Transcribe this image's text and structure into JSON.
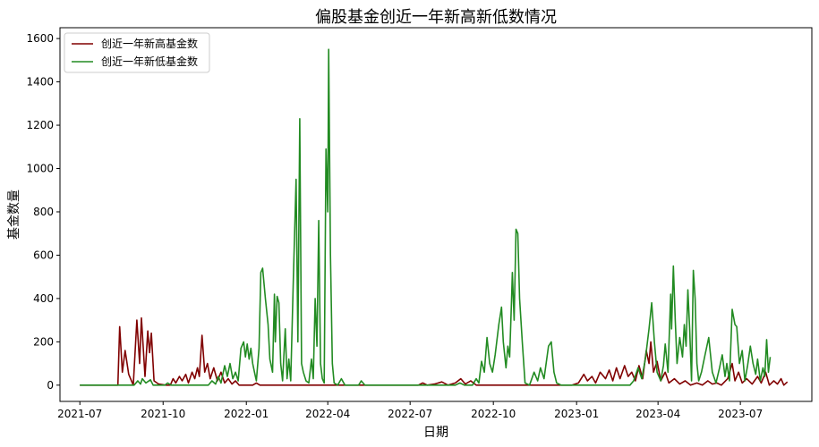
{
  "chart_data": {
    "type": "line",
    "title": "偏股基金创近一年新高新低数情况",
    "xlabel": "日期",
    "ylabel": "基金数量",
    "x_range": [
      "2021-06-09",
      "2023-09-18"
    ],
    "ylim": [
      -75,
      1650
    ],
    "grid": false,
    "legend_position": "top-left",
    "x_ticks": [
      {
        "date": "2021-07-01",
        "label": "2021-07"
      },
      {
        "date": "2021-10-01",
        "label": "2021-10"
      },
      {
        "date": "2022-01-01",
        "label": "2022-01"
      },
      {
        "date": "2022-04-01",
        "label": "2022-04"
      },
      {
        "date": "2022-07-01",
        "label": "2022-07"
      },
      {
        "date": "2022-10-01",
        "label": "2022-10"
      },
      {
        "date": "2023-01-01",
        "label": "2023-01"
      },
      {
        "date": "2023-04-01",
        "label": "2023-04"
      },
      {
        "date": "2023-07-01",
        "label": "2023-07"
      }
    ],
    "y_ticks": [
      0,
      200,
      400,
      600,
      800,
      1000,
      1200,
      1400,
      1600
    ],
    "series": [
      {
        "name": "创近一年新高基金数",
        "color": "#800000",
        "points": [
          [
            "2021-07-01",
            0
          ],
          [
            "2021-08-12",
            0
          ],
          [
            "2021-08-14",
            270
          ],
          [
            "2021-08-17",
            60
          ],
          [
            "2021-08-20",
            160
          ],
          [
            "2021-08-24",
            50
          ],
          [
            "2021-08-29",
            0
          ],
          [
            "2021-09-02",
            300
          ],
          [
            "2021-09-05",
            100
          ],
          [
            "2021-09-07",
            310
          ],
          [
            "2021-09-11",
            40
          ],
          [
            "2021-09-14",
            250
          ],
          [
            "2021-09-16",
            150
          ],
          [
            "2021-09-18",
            240
          ],
          [
            "2021-09-21",
            20
          ],
          [
            "2021-09-26",
            5
          ],
          [
            "2021-10-04",
            0
          ],
          [
            "2021-10-09",
            0
          ],
          [
            "2021-10-12",
            30
          ],
          [
            "2021-10-15",
            10
          ],
          [
            "2021-10-19",
            40
          ],
          [
            "2021-10-22",
            20
          ],
          [
            "2021-10-26",
            50
          ],
          [
            "2021-10-29",
            10
          ],
          [
            "2021-11-02",
            60
          ],
          [
            "2021-11-05",
            30
          ],
          [
            "2021-11-08",
            80
          ],
          [
            "2021-11-10",
            40
          ],
          [
            "2021-11-13",
            230
          ],
          [
            "2021-11-16",
            60
          ],
          [
            "2021-11-19",
            100
          ],
          [
            "2021-11-22",
            30
          ],
          [
            "2021-11-26",
            80
          ],
          [
            "2021-11-30",
            20
          ],
          [
            "2021-12-04",
            60
          ],
          [
            "2021-12-08",
            10
          ],
          [
            "2021-12-12",
            30
          ],
          [
            "2021-12-16",
            5
          ],
          [
            "2021-12-20",
            20
          ],
          [
            "2021-12-24",
            0
          ],
          [
            "2022-01-08",
            0
          ],
          [
            "2022-01-12",
            10
          ],
          [
            "2022-01-16",
            0
          ],
          [
            "2022-07-10",
            0
          ],
          [
            "2022-07-15",
            10
          ],
          [
            "2022-07-20",
            0
          ],
          [
            "2022-07-28",
            5
          ],
          [
            "2022-08-05",
            15
          ],
          [
            "2022-08-12",
            0
          ],
          [
            "2022-08-20",
            10
          ],
          [
            "2022-08-26",
            30
          ],
          [
            "2022-08-31",
            5
          ],
          [
            "2022-09-06",
            20
          ],
          [
            "2022-09-12",
            0
          ],
          [
            "2022-12-27",
            0
          ],
          [
            "2023-01-03",
            10
          ],
          [
            "2023-01-09",
            50
          ],
          [
            "2023-01-13",
            20
          ],
          [
            "2023-01-18",
            40
          ],
          [
            "2023-01-22",
            10
          ],
          [
            "2023-01-27",
            60
          ],
          [
            "2023-02-02",
            30
          ],
          [
            "2023-02-06",
            70
          ],
          [
            "2023-02-10",
            20
          ],
          [
            "2023-02-14",
            80
          ],
          [
            "2023-02-18",
            30
          ],
          [
            "2023-02-23",
            90
          ],
          [
            "2023-02-27",
            40
          ],
          [
            "2023-03-03",
            60
          ],
          [
            "2023-03-07",
            20
          ],
          [
            "2023-03-11",
            90
          ],
          [
            "2023-03-15",
            30
          ],
          [
            "2023-03-19",
            160
          ],
          [
            "2023-03-22",
            100
          ],
          [
            "2023-03-24",
            200
          ],
          [
            "2023-03-27",
            60
          ],
          [
            "2023-03-31",
            110
          ],
          [
            "2023-04-04",
            20
          ],
          [
            "2023-04-09",
            60
          ],
          [
            "2023-04-13",
            10
          ],
          [
            "2023-04-19",
            30
          ],
          [
            "2023-04-25",
            5
          ],
          [
            "2023-05-01",
            20
          ],
          [
            "2023-05-07",
            0
          ],
          [
            "2023-05-14",
            10
          ],
          [
            "2023-05-20",
            0
          ],
          [
            "2023-05-26",
            20
          ],
          [
            "2023-05-31",
            5
          ],
          [
            "2023-06-05",
            10
          ],
          [
            "2023-06-10",
            0
          ],
          [
            "2023-06-17",
            30
          ],
          [
            "2023-06-22",
            100
          ],
          [
            "2023-06-25",
            20
          ],
          [
            "2023-06-29",
            60
          ],
          [
            "2023-07-03",
            10
          ],
          [
            "2023-07-08",
            30
          ],
          [
            "2023-07-14",
            5
          ],
          [
            "2023-07-20",
            40
          ],
          [
            "2023-07-24",
            10
          ],
          [
            "2023-07-29",
            60
          ],
          [
            "2023-08-02",
            0
          ],
          [
            "2023-08-07",
            20
          ],
          [
            "2023-08-11",
            5
          ],
          [
            "2023-08-15",
            30
          ],
          [
            "2023-08-18",
            0
          ],
          [
            "2023-08-22",
            15
          ]
        ]
      },
      {
        "name": "创近一年新低基金数",
        "color": "#228b22",
        "points": [
          [
            "2021-07-01",
            0
          ],
          [
            "2021-08-30",
            0
          ],
          [
            "2021-09-03",
            20
          ],
          [
            "2021-09-06",
            5
          ],
          [
            "2021-09-08",
            30
          ],
          [
            "2021-09-12",
            10
          ],
          [
            "2021-09-17",
            25
          ],
          [
            "2021-09-20",
            0
          ],
          [
            "2021-10-03",
            0
          ],
          [
            "2021-10-06",
            10
          ],
          [
            "2021-10-10",
            0
          ],
          [
            "2021-11-20",
            0
          ],
          [
            "2021-11-24",
            20
          ],
          [
            "2021-11-28",
            5
          ],
          [
            "2021-12-01",
            40
          ],
          [
            "2021-12-04",
            10
          ],
          [
            "2021-12-08",
            90
          ],
          [
            "2021-12-11",
            40
          ],
          [
            "2021-12-14",
            100
          ],
          [
            "2021-12-17",
            30
          ],
          [
            "2021-12-20",
            60
          ],
          [
            "2021-12-23",
            20
          ],
          [
            "2021-12-26",
            170
          ],
          [
            "2021-12-29",
            200
          ],
          [
            "2021-12-31",
            130
          ],
          [
            "2022-01-02",
            190
          ],
          [
            "2022-01-04",
            120
          ],
          [
            "2022-01-06",
            170
          ],
          [
            "2022-01-08",
            100
          ],
          [
            "2022-01-10",
            60
          ],
          [
            "2022-01-12",
            20
          ],
          [
            "2022-01-15",
            170
          ],
          [
            "2022-01-17",
            520
          ],
          [
            "2022-01-19",
            540
          ],
          [
            "2022-01-22",
            400
          ],
          [
            "2022-01-25",
            280
          ],
          [
            "2022-01-27",
            120
          ],
          [
            "2022-01-30",
            60
          ],
          [
            "2022-02-01",
            420
          ],
          [
            "2022-02-02",
            200
          ],
          [
            "2022-02-04",
            410
          ],
          [
            "2022-02-06",
            380
          ],
          [
            "2022-02-08",
            100
          ],
          [
            "2022-02-10",
            20
          ],
          [
            "2022-02-13",
            260
          ],
          [
            "2022-02-15",
            30
          ],
          [
            "2022-02-17",
            120
          ],
          [
            "2022-02-19",
            20
          ],
          [
            "2022-02-22",
            500
          ],
          [
            "2022-02-25",
            950
          ],
          [
            "2022-02-27",
            200
          ],
          [
            "2022-03-01",
            1230
          ],
          [
            "2022-03-03",
            100
          ],
          [
            "2022-03-05",
            60
          ],
          [
            "2022-03-08",
            20
          ],
          [
            "2022-03-11",
            10
          ],
          [
            "2022-03-14",
            120
          ],
          [
            "2022-03-16",
            30
          ],
          [
            "2022-03-18",
            400
          ],
          [
            "2022-03-20",
            180
          ],
          [
            "2022-03-22",
            760
          ],
          [
            "2022-03-24",
            100
          ],
          [
            "2022-03-26",
            30
          ],
          [
            "2022-03-28",
            10
          ],
          [
            "2022-03-30",
            1090
          ],
          [
            "2022-04-01",
            800
          ],
          [
            "2022-04-02",
            1550
          ],
          [
            "2022-04-04",
            600
          ],
          [
            "2022-04-06",
            100
          ],
          [
            "2022-04-08",
            10
          ],
          [
            "2022-04-12",
            0
          ],
          [
            "2022-04-16",
            30
          ],
          [
            "2022-04-20",
            0
          ],
          [
            "2022-05-05",
            0
          ],
          [
            "2022-05-08",
            20
          ],
          [
            "2022-05-12",
            0
          ],
          [
            "2022-08-20",
            0
          ],
          [
            "2022-08-25",
            10
          ],
          [
            "2022-08-30",
            0
          ],
          [
            "2022-09-08",
            0
          ],
          [
            "2022-09-12",
            30
          ],
          [
            "2022-09-15",
            10
          ],
          [
            "2022-09-18",
            110
          ],
          [
            "2022-09-21",
            60
          ],
          [
            "2022-09-24",
            220
          ],
          [
            "2022-09-27",
            100
          ],
          [
            "2022-09-30",
            60
          ],
          [
            "2022-10-03",
            140
          ],
          [
            "2022-10-07",
            280
          ],
          [
            "2022-10-10",
            360
          ],
          [
            "2022-10-12",
            200
          ],
          [
            "2022-10-15",
            80
          ],
          [
            "2022-10-17",
            180
          ],
          [
            "2022-10-19",
            130
          ],
          [
            "2022-10-21",
            380
          ],
          [
            "2022-10-22",
            520
          ],
          [
            "2022-10-24",
            300
          ],
          [
            "2022-10-26",
            720
          ],
          [
            "2022-10-28",
            700
          ],
          [
            "2022-10-30",
            400
          ],
          [
            "2022-11-02",
            200
          ],
          [
            "2022-11-05",
            10
          ],
          [
            "2022-11-10",
            0
          ],
          [
            "2022-11-15",
            60
          ],
          [
            "2022-11-19",
            20
          ],
          [
            "2022-11-22",
            80
          ],
          [
            "2022-11-26",
            30
          ],
          [
            "2022-12-01",
            180
          ],
          [
            "2022-12-04",
            200
          ],
          [
            "2022-12-07",
            60
          ],
          [
            "2022-12-10",
            10
          ],
          [
            "2022-12-15",
            0
          ],
          [
            "2023-03-01",
            0
          ],
          [
            "2023-03-05",
            20
          ],
          [
            "2023-03-10",
            80
          ],
          [
            "2023-03-14",
            30
          ],
          [
            "2023-03-18",
            120
          ],
          [
            "2023-03-22",
            260
          ],
          [
            "2023-03-25",
            380
          ],
          [
            "2023-03-28",
            200
          ],
          [
            "2023-03-31",
            60
          ],
          [
            "2023-04-04",
            20
          ],
          [
            "2023-04-07",
            90
          ],
          [
            "2023-04-09",
            190
          ],
          [
            "2023-04-12",
            60
          ],
          [
            "2023-04-15",
            420
          ],
          [
            "2023-04-16",
            260
          ],
          [
            "2023-04-18",
            550
          ],
          [
            "2023-04-20",
            300
          ],
          [
            "2023-04-22",
            100
          ],
          [
            "2023-04-25",
            220
          ],
          [
            "2023-04-28",
            130
          ],
          [
            "2023-04-30",
            280
          ],
          [
            "2023-05-02",
            180
          ],
          [
            "2023-05-04",
            440
          ],
          [
            "2023-05-06",
            260
          ],
          [
            "2023-05-08",
            20
          ],
          [
            "2023-05-10",
            530
          ],
          [
            "2023-05-12",
            400
          ],
          [
            "2023-05-14",
            100
          ],
          [
            "2023-05-16",
            20
          ],
          [
            "2023-05-19",
            60
          ],
          [
            "2023-05-23",
            140
          ],
          [
            "2023-05-27",
            220
          ],
          [
            "2023-05-31",
            60
          ],
          [
            "2023-06-04",
            10
          ],
          [
            "2023-06-08",
            80
          ],
          [
            "2023-06-11",
            140
          ],
          [
            "2023-06-14",
            40
          ],
          [
            "2023-06-16",
            100
          ],
          [
            "2023-06-19",
            20
          ],
          [
            "2023-06-22",
            350
          ],
          [
            "2023-06-25",
            280
          ],
          [
            "2023-06-27",
            270
          ],
          [
            "2023-06-30",
            100
          ],
          [
            "2023-07-03",
            160
          ],
          [
            "2023-07-06",
            20
          ],
          [
            "2023-07-09",
            90
          ],
          [
            "2023-07-12",
            180
          ],
          [
            "2023-07-15",
            100
          ],
          [
            "2023-07-18",
            50
          ],
          [
            "2023-07-20",
            120
          ],
          [
            "2023-07-23",
            20
          ],
          [
            "2023-07-26",
            80
          ],
          [
            "2023-07-28",
            40
          ],
          [
            "2023-07-30",
            210
          ],
          [
            "2023-08-01",
            60
          ],
          [
            "2023-08-03",
            130
          ]
        ]
      }
    ]
  }
}
